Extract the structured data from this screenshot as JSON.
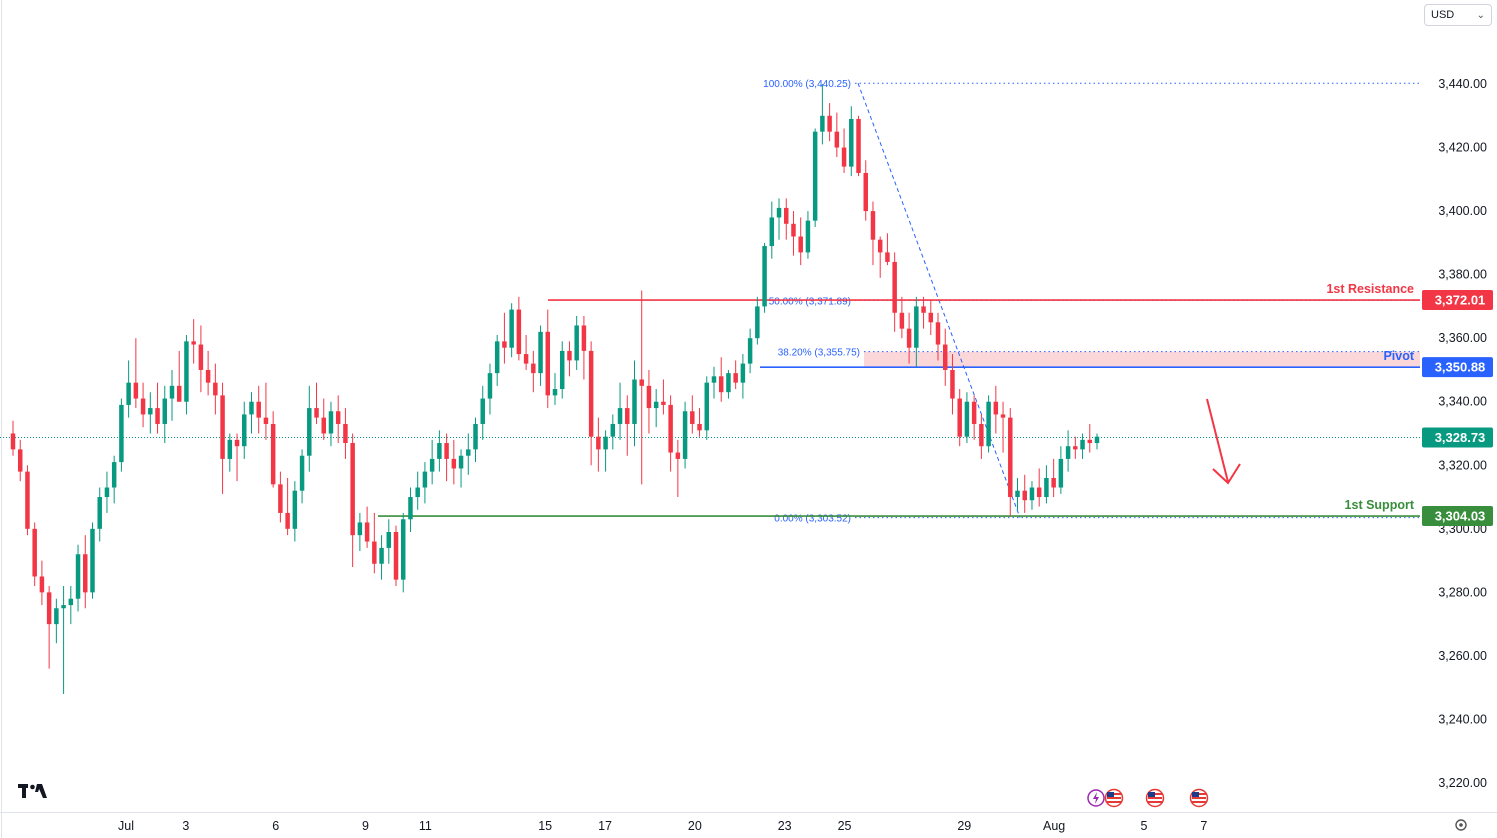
{
  "currency_selector": {
    "value": "USD"
  },
  "chart_data": {
    "type": "candlestick",
    "y_axis": {
      "ticks": [
        "3,440.00",
        "3,420.00",
        "3,400.00",
        "3,380.00",
        "3,360.00",
        "3,340.00",
        "3,320.00",
        "3,300.00",
        "3,280.00",
        "3,260.00",
        "3,240.00",
        "3,220.00"
      ],
      "range": [
        3212,
        3450
      ]
    },
    "x_axis": {
      "ticks": [
        {
          "label": "Jul",
          "day": 1
        },
        {
          "label": "3",
          "day": 3
        },
        {
          "label": "6",
          "day": 6
        },
        {
          "label": "9",
          "day": 9
        },
        {
          "label": "11",
          "day": 11
        },
        {
          "label": "15",
          "day": 15
        },
        {
          "label": "17",
          "day": 17
        },
        {
          "label": "20",
          "day": 20
        },
        {
          "label": "23",
          "day": 23
        },
        {
          "label": "25",
          "day": 25
        },
        {
          "label": "29",
          "day": 29
        },
        {
          "label": "Aug",
          "day": 32
        },
        {
          "label": "5",
          "day": 35
        },
        {
          "label": "7",
          "day": 37
        }
      ]
    },
    "candles": [
      [
        3330,
        3334,
        3323,
        3325
      ],
      [
        3325,
        3328,
        3315,
        3318
      ],
      [
        3318,
        3320,
        3298,
        3300
      ],
      [
        3300,
        3302,
        3282,
        3285
      ],
      [
        3285,
        3290,
        3276,
        3280
      ],
      [
        3280,
        3282,
        3256,
        3270
      ],
      [
        3270,
        3278,
        3264,
        3275
      ],
      [
        3275,
        3282,
        3248,
        3276
      ],
      [
        3276,
        3282,
        3270,
        3278
      ],
      [
        3278,
        3295,
        3274,
        3292
      ],
      [
        3292,
        3298,
        3275,
        3280
      ],
      [
        3280,
        3302,
        3278,
        3300
      ],
      [
        3300,
        3313,
        3296,
        3310
      ],
      [
        3310,
        3318,
        3305,
        3313
      ],
      [
        3313,
        3323,
        3308,
        3321
      ],
      [
        3321,
        3341,
        3318,
        3339
      ],
      [
        3339,
        3353,
        3335,
        3346
      ],
      [
        3346,
        3360,
        3338,
        3341
      ],
      [
        3341,
        3346,
        3332,
        3336
      ],
      [
        3336,
        3343,
        3330,
        3338
      ],
      [
        3338,
        3346,
        3330,
        3333
      ],
      [
        3333,
        3345,
        3327,
        3341
      ],
      [
        3341,
        3350,
        3334,
        3345
      ],
      [
        3345,
        3356,
        3340,
        3340
      ],
      [
        3340,
        3361,
        3336,
        3359
      ],
      [
        3359,
        3366,
        3352,
        3358
      ],
      [
        3358,
        3364,
        3343,
        3350
      ],
      [
        3350,
        3356,
        3342,
        3346
      ],
      [
        3346,
        3352,
        3336,
        3342
      ],
      [
        3342,
        3346,
        3311,
        3322
      ],
      [
        3322,
        3330,
        3318,
        3328
      ],
      [
        3328,
        3330,
        3315,
        3326
      ],
      [
        3326,
        3340,
        3322,
        3336
      ],
      [
        3336,
        3343,
        3330,
        3340
      ],
      [
        3340,
        3345,
        3330,
        3335
      ],
      [
        3335,
        3346,
        3328,
        3333
      ],
      [
        3333,
        3337,
        3313,
        3314
      ],
      [
        3314,
        3318,
        3302,
        3305
      ],
      [
        3305,
        3316,
        3298,
        3300
      ],
      [
        3300,
        3315,
        3296,
        3312
      ],
      [
        3312,
        3325,
        3308,
        3323
      ],
      [
        3323,
        3345,
        3318,
        3338
      ],
      [
        3338,
        3346,
        3333,
        3335
      ],
      [
        3335,
        3341,
        3328,
        3330
      ],
      [
        3330,
        3340,
        3326,
        3337
      ],
      [
        3337,
        3342,
        3327,
        3333
      ],
      [
        3333,
        3338,
        3322,
        3327
      ],
      [
        3327,
        3330,
        3288,
        3298
      ],
      [
        3298,
        3305,
        3293,
        3302
      ],
      [
        3302,
        3307,
        3294,
        3296
      ],
      [
        3296,
        3305,
        3286,
        3289
      ],
      [
        3289,
        3298,
        3284,
        3294
      ],
      [
        3294,
        3303,
        3289,
        3299
      ],
      [
        3299,
        3301,
        3282,
        3284
      ],
      [
        3284,
        3305,
        3280,
        3303
      ],
      [
        3303,
        3313,
        3299,
        3310
      ],
      [
        3310,
        3318,
        3306,
        3313
      ],
      [
        3313,
        3321,
        3308,
        3318
      ],
      [
        3318,
        3328,
        3314,
        3322
      ],
      [
        3322,
        3331,
        3318,
        3327
      ],
      [
        3327,
        3330,
        3315,
        3322
      ],
      [
        3322,
        3328,
        3314,
        3319
      ],
      [
        3319,
        3325,
        3313,
        3323
      ],
      [
        3323,
        3330,
        3317,
        3325
      ],
      [
        3325,
        3335,
        3321,
        3333
      ],
      [
        3333,
        3345,
        3328,
        3341
      ],
      [
        3341,
        3352,
        3336,
        3349
      ],
      [
        3349,
        3361,
        3345,
        3359
      ],
      [
        3359,
        3368,
        3352,
        3357
      ],
      [
        3357,
        3371,
        3354,
        3369
      ],
      [
        3369,
        3373,
        3353,
        3355
      ],
      [
        3355,
        3361,
        3350,
        3352
      ],
      [
        3352,
        3356,
        3343,
        3349
      ],
      [
        3349,
        3364,
        3345,
        3362
      ],
      [
        3362,
        3369,
        3338,
        3342
      ],
      [
        3342,
        3349,
        3339,
        3344
      ],
      [
        3344,
        3359,
        3341,
        3356
      ],
      [
        3356,
        3359,
        3348,
        3353
      ],
      [
        3353,
        3367,
        3350,
        3364
      ],
      [
        3364,
        3367,
        3347,
        3356
      ],
      [
        3356,
        3359,
        3320,
        3329
      ],
      [
        3329,
        3335,
        3318,
        3325
      ],
      [
        3325,
        3331,
        3318,
        3329
      ],
      [
        3329,
        3336,
        3325,
        3333
      ],
      [
        3333,
        3346,
        3328,
        3338
      ],
      [
        3338,
        3342,
        3323,
        3333
      ],
      [
        3333,
        3353,
        3326,
        3347
      ],
      [
        3347,
        3375,
        3314,
        3345
      ],
      [
        3345,
        3350,
        3330,
        3338
      ],
      [
        3338,
        3344,
        3332,
        3340
      ],
      [
        3340,
        3347,
        3336,
        3339
      ],
      [
        3339,
        3342,
        3318,
        3324
      ],
      [
        3324,
        3328,
        3310,
        3322
      ],
      [
        3322,
        3340,
        3319,
        3337
      ],
      [
        3337,
        3342,
        3330,
        3333
      ],
      [
        3333,
        3338,
        3329,
        3331
      ],
      [
        3331,
        3348,
        3328,
        3346
      ],
      [
        3346,
        3351,
        3341,
        3348
      ],
      [
        3348,
        3354,
        3340,
        3343
      ],
      [
        3343,
        3350,
        3341,
        3349
      ],
      [
        3349,
        3353,
        3344,
        3346
      ],
      [
        3346,
        3355,
        3341,
        3352
      ],
      [
        3352,
        3363,
        3349,
        3360
      ],
      [
        3360,
        3373,
        3358,
        3370
      ],
      [
        3370,
        3390,
        3368,
        3389
      ],
      [
        3389,
        3403,
        3385,
        3398
      ],
      [
        3398,
        3404,
        3391,
        3401
      ],
      [
        3401,
        3404,
        3391,
        3396
      ],
      [
        3396,
        3400,
        3386,
        3392
      ],
      [
        3392,
        3398,
        3383,
        3387
      ],
      [
        3387,
        3400,
        3385,
        3397
      ],
      [
        3397,
        3426,
        3395,
        3425
      ],
      [
        3425,
        3440,
        3421,
        3430
      ],
      [
        3430,
        3434,
        3422,
        3425
      ],
      [
        3425,
        3431,
        3417,
        3420
      ],
      [
        3420,
        3426,
        3412,
        3414
      ],
      [
        3414,
        3433,
        3411,
        3429
      ],
      [
        3429,
        3430,
        3411,
        3412
      ],
      [
        3412,
        3416,
        3397,
        3400
      ],
      [
        3400,
        3403,
        3383,
        3391
      ],
      [
        3391,
        3392,
        3379,
        3387
      ],
      [
        3387,
        3393,
        3383,
        3384
      ],
      [
        3384,
        3387,
        3362,
        3368
      ],
      [
        3368,
        3373,
        3360,
        3363
      ],
      [
        3363,
        3368,
        3352,
        3357
      ],
      [
        3357,
        3373,
        3351,
        3370
      ],
      [
        3370,
        3373,
        3363,
        3368
      ],
      [
        3368,
        3372,
        3361,
        3365
      ],
      [
        3365,
        3368,
        3353,
        3358
      ],
      [
        3358,
        3363,
        3345,
        3350
      ],
      [
        3350,
        3355,
        3336,
        3341
      ],
      [
        3341,
        3344,
        3326,
        3329
      ],
      [
        3329,
        3343,
        3327,
        3340
      ],
      [
        3340,
        3342,
        3328,
        3333
      ],
      [
        3333,
        3336,
        3322,
        3326
      ],
      [
        3326,
        3342,
        3324,
        3340
      ],
      [
        3340,
        3345,
        3330,
        3336
      ],
      [
        3336,
        3340,
        3324,
        3335
      ],
      [
        3335,
        3338,
        3304,
        3310
      ],
      [
        3310,
        3316,
        3306,
        3312
      ],
      [
        3312,
        3317,
        3305,
        3309
      ],
      [
        3309,
        3315,
        3306,
        3313
      ],
      [
        3313,
        3319,
        3307,
        3310
      ],
      [
        3310,
        3320,
        3308,
        3316
      ],
      [
        3316,
        3322,
        3310,
        3313
      ],
      [
        3313,
        3326,
        3311,
        3322
      ],
      [
        3322,
        3331,
        3318,
        3326
      ],
      [
        3326,
        3329,
        3322,
        3325
      ],
      [
        3325,
        3330,
        3322,
        3328
      ],
      [
        3328,
        3333,
        3324,
        3327
      ],
      [
        3327,
        3330,
        3325,
        3329
      ]
    ],
    "levels": [
      {
        "name": "1st Resistance",
        "value": 3372.01,
        "badge": "3,372.01",
        "color": "#f23645"
      },
      {
        "name": "Pivot",
        "value": 3350.88,
        "badge": "3,350.88",
        "color": "#2962ff"
      },
      {
        "name": "1st Support",
        "value": 3304.03,
        "badge": "3,304.03",
        "color": "#388e3c"
      }
    ],
    "current_price": {
      "value": 3328.73,
      "badge": "3,328.73",
      "color": "#089981"
    },
    "fibonacci": [
      {
        "label": "100.00% (3,440.25)",
        "value": 3440.25
      },
      {
        "label": "50.00% (3,371.89)",
        "value": 3371.89
      },
      {
        "label": "38.20% (3,355.75)",
        "value": 3355.75
      },
      {
        "label": "0.00% (3,303.52)",
        "value": 3303.52
      }
    ],
    "pivot_zone": [
      3350.88,
      3355.75
    ],
    "colors": {
      "up": "#089981",
      "down": "#f23645",
      "arrow": "#f23645",
      "fib": "#2962ff"
    }
  }
}
